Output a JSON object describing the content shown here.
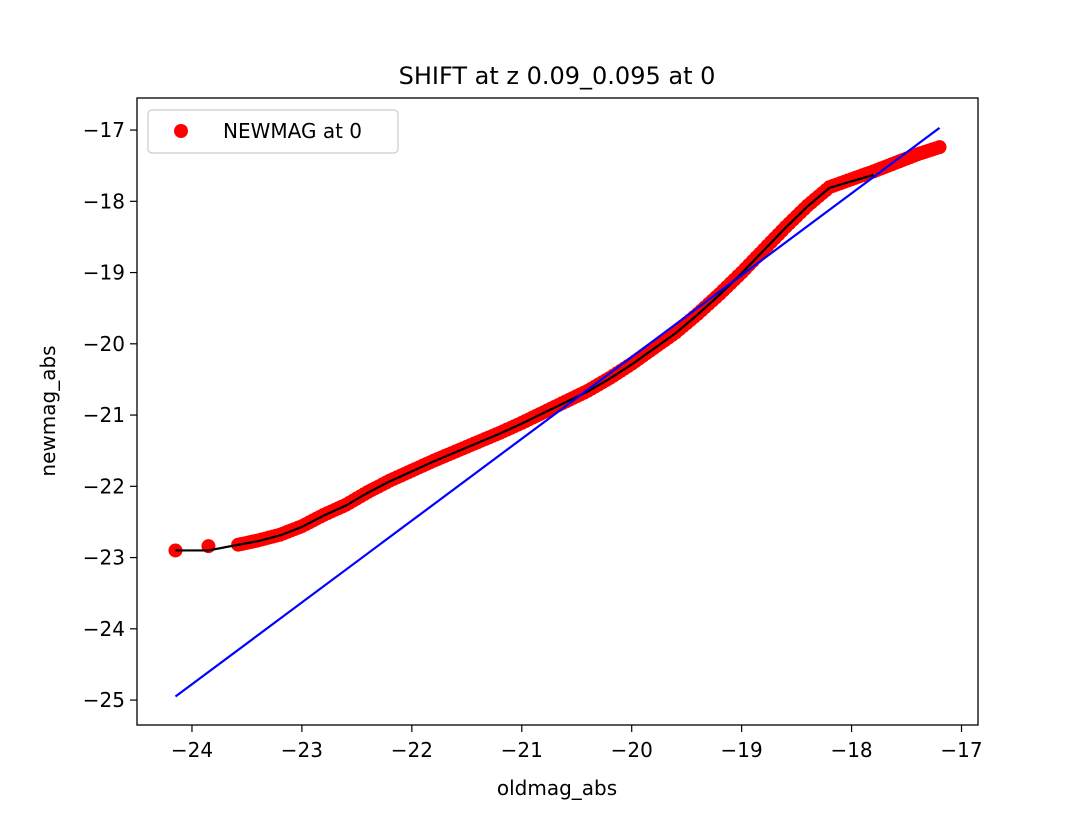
{
  "chart_data": {
    "type": "scatter",
    "title": "SHIFT at z 0.09_0.095 at 0",
    "xlabel": "oldmag_abs",
    "ylabel": "newmag_abs",
    "xlim": [
      -24.5,
      -16.85
    ],
    "ylim": [
      -25.35,
      -16.55
    ],
    "xticks": [
      -24,
      -23,
      -22,
      -21,
      -20,
      -19,
      -18,
      -17
    ],
    "xtick_labels": [
      "−24",
      "−23",
      "−22",
      "−21",
      "−20",
      "−19",
      "−18",
      "−17"
    ],
    "yticks": [
      -17,
      -18,
      -19,
      -20,
      -21,
      -22,
      -23,
      -24,
      -25
    ],
    "ytick_labels": [
      "−17",
      "−18",
      "−19",
      "−20",
      "−21",
      "−22",
      "−23",
      "−24",
      "−25"
    ],
    "grid": false,
    "legend": {
      "placement": "upper left",
      "entries": [
        "NEWMAG at 0"
      ]
    },
    "series": [
      {
        "name": "NEWMAG at 0",
        "kind": "scatter",
        "color": "#ff0000",
        "x": [
          -24.15,
          -23.85,
          -23.58,
          -23.4,
          -23.2,
          -23.0,
          -22.8,
          -22.6,
          -22.4,
          -22.2,
          -22.0,
          -21.8,
          -21.6,
          -21.4,
          -21.2,
          -21.0,
          -20.8,
          -20.6,
          -20.4,
          -20.2,
          -20.0,
          -19.8,
          -19.6,
          -19.4,
          -19.2,
          -19.0,
          -18.8,
          -18.6,
          -18.4,
          -18.2,
          -18.0,
          -17.8,
          -17.6,
          -17.4,
          -17.2
        ],
        "y": [
          -22.9,
          -22.84,
          -22.82,
          -22.76,
          -22.68,
          -22.56,
          -22.4,
          -22.26,
          -22.08,
          -21.92,
          -21.78,
          -21.64,
          -21.51,
          -21.38,
          -21.25,
          -21.11,
          -20.96,
          -20.81,
          -20.66,
          -20.48,
          -20.28,
          -20.06,
          -19.84,
          -19.58,
          -19.3,
          -19.0,
          -18.68,
          -18.36,
          -18.06,
          -17.8,
          -17.69,
          -17.58,
          -17.46,
          -17.34,
          -17.24
        ]
      },
      {
        "kind": "line",
        "color": "#000000",
        "x": [
          -24.15,
          -23.85,
          -23.58,
          -23.4,
          -23.2,
          -23.0,
          -22.8,
          -22.6,
          -22.4,
          -22.2,
          -22.0,
          -21.8,
          -21.6,
          -21.4,
          -21.2,
          -21.0,
          -20.8,
          -20.6,
          -20.4,
          -20.2,
          -20.0,
          -19.8,
          -19.6,
          -19.4,
          -19.2,
          -19.0,
          -18.8,
          -18.6,
          -18.4,
          -18.2,
          -18.0,
          -17.8
        ],
        "y": [
          -22.9,
          -22.9,
          -22.82,
          -22.77,
          -22.69,
          -22.57,
          -22.41,
          -22.27,
          -22.09,
          -21.93,
          -21.79,
          -21.65,
          -21.52,
          -21.39,
          -21.26,
          -21.12,
          -20.97,
          -20.82,
          -20.67,
          -20.49,
          -20.29,
          -20.07,
          -19.85,
          -19.59,
          -19.31,
          -19.01,
          -18.69,
          -18.37,
          -18.07,
          -17.81,
          -17.72,
          -17.63
        ]
      },
      {
        "kind": "line",
        "color": "#0000ff",
        "x": [
          -24.15,
          -17.2
        ],
        "y": [
          -24.95,
          -16.97
        ]
      }
    ]
  }
}
